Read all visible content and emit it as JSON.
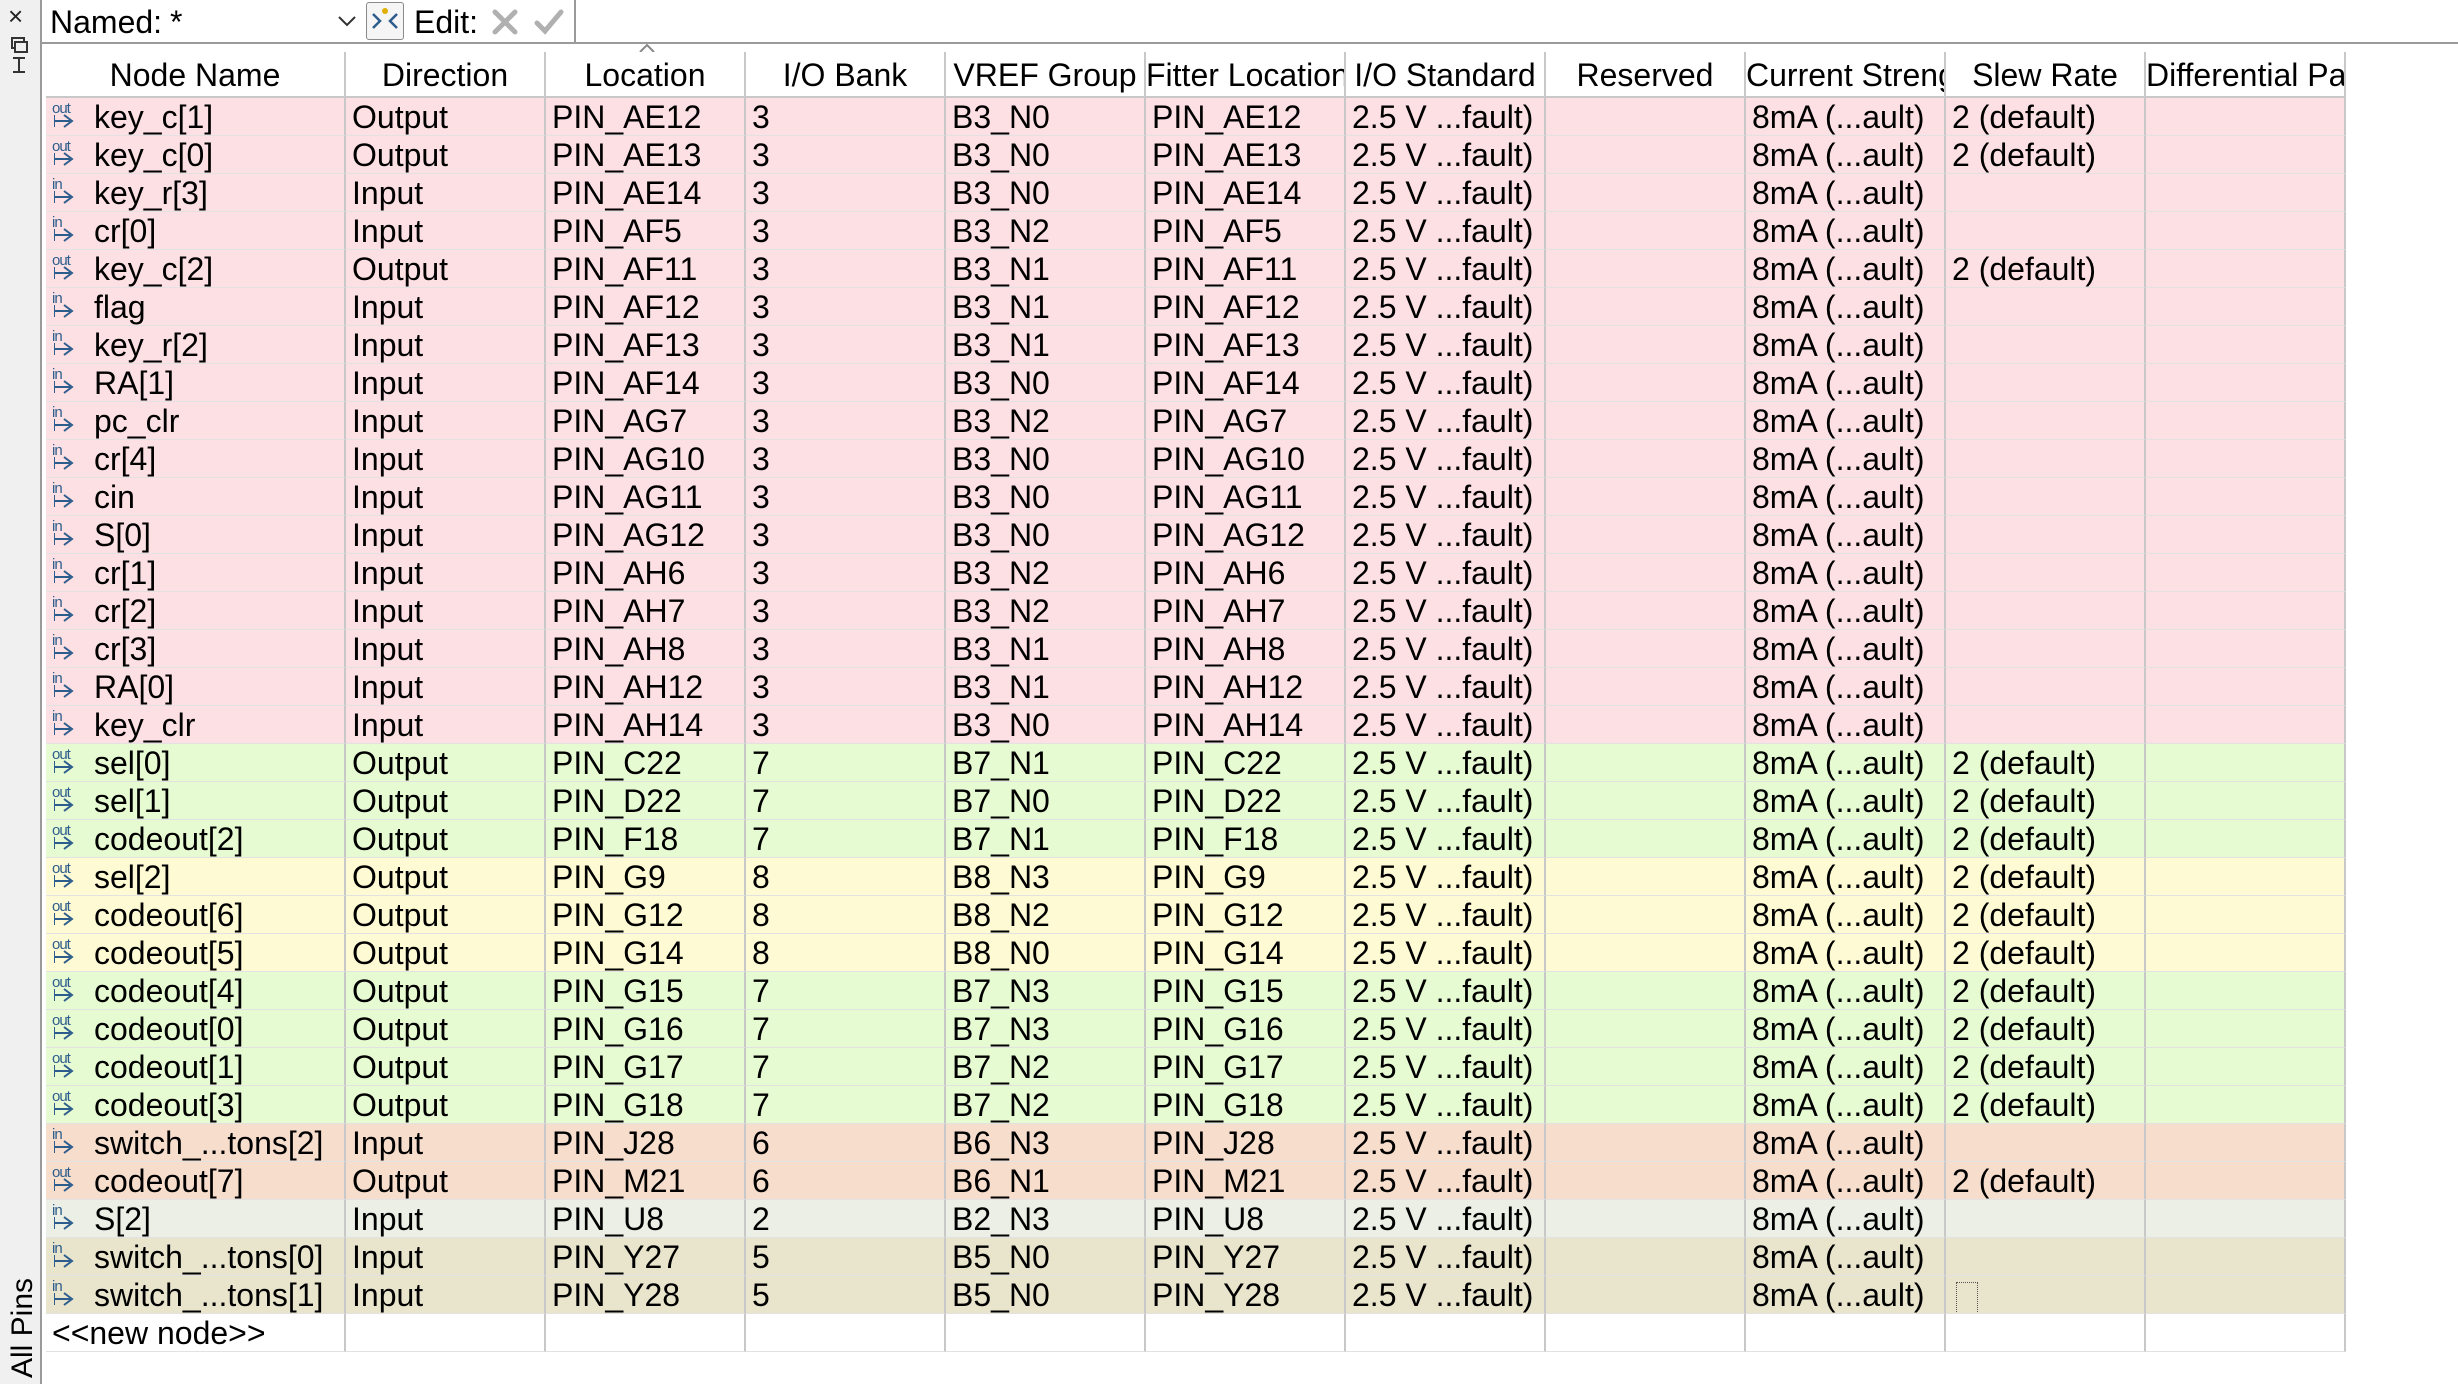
{
  "side": {
    "close_glyph": "×",
    "tab_label": "All Pins",
    "float_icon": "float-window-icon"
  },
  "toolbar": {
    "named_label": "Named:",
    "named_value": "*",
    "filter_icon": "filter-icon",
    "edit_label": "Edit:",
    "cancel_icon": "cancel-icon",
    "accept_icon": "accept-icon"
  },
  "columns": {
    "node_name": "Node Name",
    "direction": "Direction",
    "location": "Location",
    "io_bank": "I/O Bank",
    "vref_group": "VREF Group",
    "fitter_location": "Fitter Location",
    "io_standard": "I/O Standard",
    "reserved": "Reserved",
    "current_strength": "Current Strength",
    "slew_rate": "Slew Rate",
    "differential_pair": "Differential Pair"
  },
  "colors": {
    "bank3": "#fde0e3",
    "bank7": "#e7fbd3",
    "bank8": "#fefad3",
    "bank6": "#f7ddcc",
    "bank2": "#ebefe5",
    "bank5": "#e9e5cd",
    "pin_icon": "#2d5d8c"
  },
  "rows": [
    {
      "name": "key_c[1]",
      "dir": "Output",
      "loc": "PIN_AE12",
      "bank": "3",
      "vref": "B3_N0",
      "fit": "PIN_AE12",
      "std": "2.5 V ...fault)",
      "res": "",
      "cur": "8mA (...ault)",
      "slew": "2 (default)",
      "diff": "",
      "icon": "out"
    },
    {
      "name": "key_c[0]",
      "dir": "Output",
      "loc": "PIN_AE13",
      "bank": "3",
      "vref": "B3_N0",
      "fit": "PIN_AE13",
      "std": "2.5 V ...fault)",
      "res": "",
      "cur": "8mA (...ault)",
      "slew": "2 (default)",
      "diff": "",
      "icon": "out"
    },
    {
      "name": "key_r[3]",
      "dir": "Input",
      "loc": "PIN_AE14",
      "bank": "3",
      "vref": "B3_N0",
      "fit": "PIN_AE14",
      "std": "2.5 V ...fault)",
      "res": "",
      "cur": "8mA (...ault)",
      "slew": "",
      "diff": "",
      "icon": "in"
    },
    {
      "name": "cr[0]",
      "dir": "Input",
      "loc": "PIN_AF5",
      "bank": "3",
      "vref": "B3_N2",
      "fit": "PIN_AF5",
      "std": "2.5 V ...fault)",
      "res": "",
      "cur": "8mA (...ault)",
      "slew": "",
      "diff": "",
      "icon": "in"
    },
    {
      "name": "key_c[2]",
      "dir": "Output",
      "loc": "PIN_AF11",
      "bank": "3",
      "vref": "B3_N1",
      "fit": "PIN_AF11",
      "std": "2.5 V ...fault)",
      "res": "",
      "cur": "8mA (...ault)",
      "slew": "2 (default)",
      "diff": "",
      "icon": "out"
    },
    {
      "name": "flag",
      "dir": "Input",
      "loc": "PIN_AF12",
      "bank": "3",
      "vref": "B3_N1",
      "fit": "PIN_AF12",
      "std": "2.5 V ...fault)",
      "res": "",
      "cur": "8mA (...ault)",
      "slew": "",
      "diff": "",
      "icon": "in"
    },
    {
      "name": "key_r[2]",
      "dir": "Input",
      "loc": "PIN_AF13",
      "bank": "3",
      "vref": "B3_N1",
      "fit": "PIN_AF13",
      "std": "2.5 V ...fault)",
      "res": "",
      "cur": "8mA (...ault)",
      "slew": "",
      "diff": "",
      "icon": "in"
    },
    {
      "name": "RA[1]",
      "dir": "Input",
      "loc": "PIN_AF14",
      "bank": "3",
      "vref": "B3_N0",
      "fit": "PIN_AF14",
      "std": "2.5 V ...fault)",
      "res": "",
      "cur": "8mA (...ault)",
      "slew": "",
      "diff": "",
      "icon": "in"
    },
    {
      "name": "pc_clr",
      "dir": "Input",
      "loc": "PIN_AG7",
      "bank": "3",
      "vref": "B3_N2",
      "fit": "PIN_AG7",
      "std": "2.5 V ...fault)",
      "res": "",
      "cur": "8mA (...ault)",
      "slew": "",
      "diff": "",
      "icon": "in"
    },
    {
      "name": "cr[4]",
      "dir": "Input",
      "loc": "PIN_AG10",
      "bank": "3",
      "vref": "B3_N0",
      "fit": "PIN_AG10",
      "std": "2.5 V ...fault)",
      "res": "",
      "cur": "8mA (...ault)",
      "slew": "",
      "diff": "",
      "icon": "in"
    },
    {
      "name": "cin",
      "dir": "Input",
      "loc": "PIN_AG11",
      "bank": "3",
      "vref": "B3_N0",
      "fit": "PIN_AG11",
      "std": "2.5 V ...fault)",
      "res": "",
      "cur": "8mA (...ault)",
      "slew": "",
      "diff": "",
      "icon": "in"
    },
    {
      "name": "S[0]",
      "dir": "Input",
      "loc": "PIN_AG12",
      "bank": "3",
      "vref": "B3_N0",
      "fit": "PIN_AG12",
      "std": "2.5 V ...fault)",
      "res": "",
      "cur": "8mA (...ault)",
      "slew": "",
      "diff": "",
      "icon": "in"
    },
    {
      "name": "cr[1]",
      "dir": "Input",
      "loc": "PIN_AH6",
      "bank": "3",
      "vref": "B3_N2",
      "fit": "PIN_AH6",
      "std": "2.5 V ...fault)",
      "res": "",
      "cur": "8mA (...ault)",
      "slew": "",
      "diff": "",
      "icon": "in"
    },
    {
      "name": "cr[2]",
      "dir": "Input",
      "loc": "PIN_AH7",
      "bank": "3",
      "vref": "B3_N2",
      "fit": "PIN_AH7",
      "std": "2.5 V ...fault)",
      "res": "",
      "cur": "8mA (...ault)",
      "slew": "",
      "diff": "",
      "icon": "in"
    },
    {
      "name": "cr[3]",
      "dir": "Input",
      "loc": "PIN_AH8",
      "bank": "3",
      "vref": "B3_N1",
      "fit": "PIN_AH8",
      "std": "2.5 V ...fault)",
      "res": "",
      "cur": "8mA (...ault)",
      "slew": "",
      "diff": "",
      "icon": "in"
    },
    {
      "name": "RA[0]",
      "dir": "Input",
      "loc": "PIN_AH12",
      "bank": "3",
      "vref": "B3_N1",
      "fit": "PIN_AH12",
      "std": "2.5 V ...fault)",
      "res": "",
      "cur": "8mA (...ault)",
      "slew": "",
      "diff": "",
      "icon": "in"
    },
    {
      "name": "key_clr",
      "dir": "Input",
      "loc": "PIN_AH14",
      "bank": "3",
      "vref": "B3_N0",
      "fit": "PIN_AH14",
      "std": "2.5 V ...fault)",
      "res": "",
      "cur": "8mA (...ault)",
      "slew": "",
      "diff": "",
      "icon": "in"
    },
    {
      "name": "sel[0]",
      "dir": "Output",
      "loc": "PIN_C22",
      "bank": "7",
      "vref": "B7_N1",
      "fit": "PIN_C22",
      "std": "2.5 V ...fault)",
      "res": "",
      "cur": "8mA (...ault)",
      "slew": "2 (default)",
      "diff": "",
      "icon": "out"
    },
    {
      "name": "sel[1]",
      "dir": "Output",
      "loc": "PIN_D22",
      "bank": "7",
      "vref": "B7_N0",
      "fit": "PIN_D22",
      "std": "2.5 V ...fault)",
      "res": "",
      "cur": "8mA (...ault)",
      "slew": "2 (default)",
      "diff": "",
      "icon": "out"
    },
    {
      "name": "codeout[2]",
      "dir": "Output",
      "loc": "PIN_F18",
      "bank": "7",
      "vref": "B7_N1",
      "fit": "PIN_F18",
      "std": "2.5 V ...fault)",
      "res": "",
      "cur": "8mA (...ault)",
      "slew": "2 (default)",
      "diff": "",
      "icon": "out"
    },
    {
      "name": "sel[2]",
      "dir": "Output",
      "loc": "PIN_G9",
      "bank": "8",
      "vref": "B8_N3",
      "fit": "PIN_G9",
      "std": "2.5 V ...fault)",
      "res": "",
      "cur": "8mA (...ault)",
      "slew": "2 (default)",
      "diff": "",
      "icon": "out"
    },
    {
      "name": "codeout[6]",
      "dir": "Output",
      "loc": "PIN_G12",
      "bank": "8",
      "vref": "B8_N2",
      "fit": "PIN_G12",
      "std": "2.5 V ...fault)",
      "res": "",
      "cur": "8mA (...ault)",
      "slew": "2 (default)",
      "diff": "",
      "icon": "out"
    },
    {
      "name": "codeout[5]",
      "dir": "Output",
      "loc": "PIN_G14",
      "bank": "8",
      "vref": "B8_N0",
      "fit": "PIN_G14",
      "std": "2.5 V ...fault)",
      "res": "",
      "cur": "8mA (...ault)",
      "slew": "2 (default)",
      "diff": "",
      "icon": "out"
    },
    {
      "name": "codeout[4]",
      "dir": "Output",
      "loc": "PIN_G15",
      "bank": "7",
      "vref": "B7_N3",
      "fit": "PIN_G15",
      "std": "2.5 V ...fault)",
      "res": "",
      "cur": "8mA (...ault)",
      "slew": "2 (default)",
      "diff": "",
      "icon": "out"
    },
    {
      "name": "codeout[0]",
      "dir": "Output",
      "loc": "PIN_G16",
      "bank": "7",
      "vref": "B7_N3",
      "fit": "PIN_G16",
      "std": "2.5 V ...fault)",
      "res": "",
      "cur": "8mA (...ault)",
      "slew": "2 (default)",
      "diff": "",
      "icon": "out"
    },
    {
      "name": "codeout[1]",
      "dir": "Output",
      "loc": "PIN_G17",
      "bank": "7",
      "vref": "B7_N2",
      "fit": "PIN_G17",
      "std": "2.5 V ...fault)",
      "res": "",
      "cur": "8mA (...ault)",
      "slew": "2 (default)",
      "diff": "",
      "icon": "out"
    },
    {
      "name": "codeout[3]",
      "dir": "Output",
      "loc": "PIN_G18",
      "bank": "7",
      "vref": "B7_N2",
      "fit": "PIN_G18",
      "std": "2.5 V ...fault)",
      "res": "",
      "cur": "8mA (...ault)",
      "slew": "2 (default)",
      "diff": "",
      "icon": "out"
    },
    {
      "name": "switch_...tons[2]",
      "dir": "Input",
      "loc": "PIN_J28",
      "bank": "6",
      "vref": "B6_N3",
      "fit": "PIN_J28",
      "std": "2.5 V ...fault)",
      "res": "",
      "cur": "8mA (...ault)",
      "slew": "",
      "diff": "",
      "icon": "in"
    },
    {
      "name": "codeout[7]",
      "dir": "Output",
      "loc": "PIN_M21",
      "bank": "6",
      "vref": "B6_N1",
      "fit": "PIN_M21",
      "std": "2.5 V ...fault)",
      "res": "",
      "cur": "8mA (...ault)",
      "slew": "2 (default)",
      "diff": "",
      "icon": "out"
    },
    {
      "name": "S[2]",
      "dir": "Input",
      "loc": "PIN_U8",
      "bank": "2",
      "vref": "B2_N3",
      "fit": "PIN_U8",
      "std": "2.5 V ...fault)",
      "res": "",
      "cur": "8mA (...ault)",
      "slew": "",
      "diff": "",
      "icon": "in"
    },
    {
      "name": "switch_...tons[0]",
      "dir": "Input",
      "loc": "PIN_Y27",
      "bank": "5",
      "vref": "B5_N0",
      "fit": "PIN_Y27",
      "std": "2.5 V ...fault)",
      "res": "",
      "cur": "8mA (...ault)",
      "slew": "",
      "diff": "",
      "icon": "in"
    },
    {
      "name": "switch_...tons[1]",
      "dir": "Input",
      "loc": "PIN_Y28",
      "bank": "5",
      "vref": "B5_N0",
      "fit": "PIN_Y28",
      "std": "2.5 V ...fault)",
      "res": "",
      "cur": "8mA (...ault)",
      "slew": "",
      "diff": "",
      "icon": "in",
      "focus": true
    }
  ],
  "new_node_label": "<<new node>>"
}
